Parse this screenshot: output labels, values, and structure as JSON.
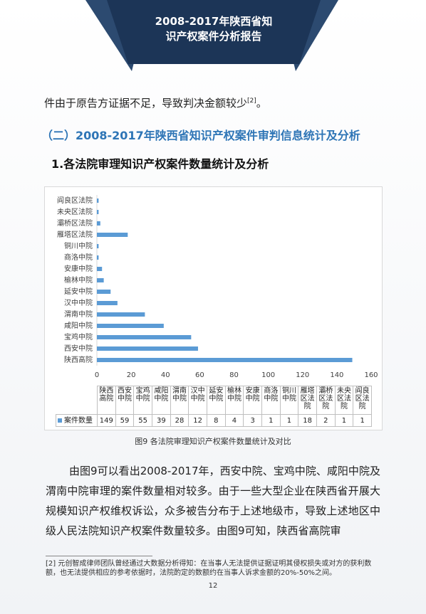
{
  "header": {
    "title_lines": [
      "2008-2017年陕西省知",
      "识产权案件分析报告"
    ]
  },
  "body": {
    "first_line": "件由于原告方证据不足，导致判决金额较少",
    "first_line_note": "[2]",
    "first_line_end": "。",
    "section_heading": "（二）2008-2017年陕西省知识产权案件审判信息统计及分析",
    "subheading": "1.各法院审理知识产权案件数量统计及分析",
    "caption": "图9  各法院审理知识产权案件数量统计及对比",
    "paragraph": "由图9可以看出2008-2017年，西安中院、宝鸡中院、咸阳中院及渭南中院审理的案件数量相对较多。由于一些大型企业在陕西省开展大规模知识产权维权诉讼，众多被告分布于上述地级市，导致上述地区中级人民法院知识产权案件数量较多。由图9可知，陕西省高院审"
  },
  "footnote": {
    "mark": "[2]",
    "text": "元创智成律师团队曾经通过大数据分析得知：在当事人无法提供证据证明其侵权损失或对方的获利数额，也无法提供相应的参考依据时，法院酌定的数额约在当事人诉求金额的20%-50%之间。"
  },
  "page_number": "12",
  "chart_data": {
    "type": "bar",
    "orientation": "horizontal",
    "categories": [
      "陕西高院",
      "西安中院",
      "宝鸡中院",
      "咸阳中院",
      "渭南中院",
      "汉中中院",
      "延安中院",
      "榆林中院",
      "安康中院",
      "商洛中院",
      "铜川中院",
      "雁塔区法院",
      "灞桥区法院",
      "未央区法院",
      "阎良区法院"
    ],
    "series": [
      {
        "name": "案件数量",
        "color": "#5b9bd5",
        "values": [
          149,
          59,
          55,
          39,
          28,
          12,
          8,
          4,
          3,
          1,
          1,
          18,
          2,
          1,
          1
        ]
      }
    ],
    "xlim": [
      0,
      160
    ],
    "xticks": [
      0,
      20,
      40,
      60,
      80,
      100,
      120,
      140,
      160
    ],
    "grid": false,
    "data_table": true
  }
}
